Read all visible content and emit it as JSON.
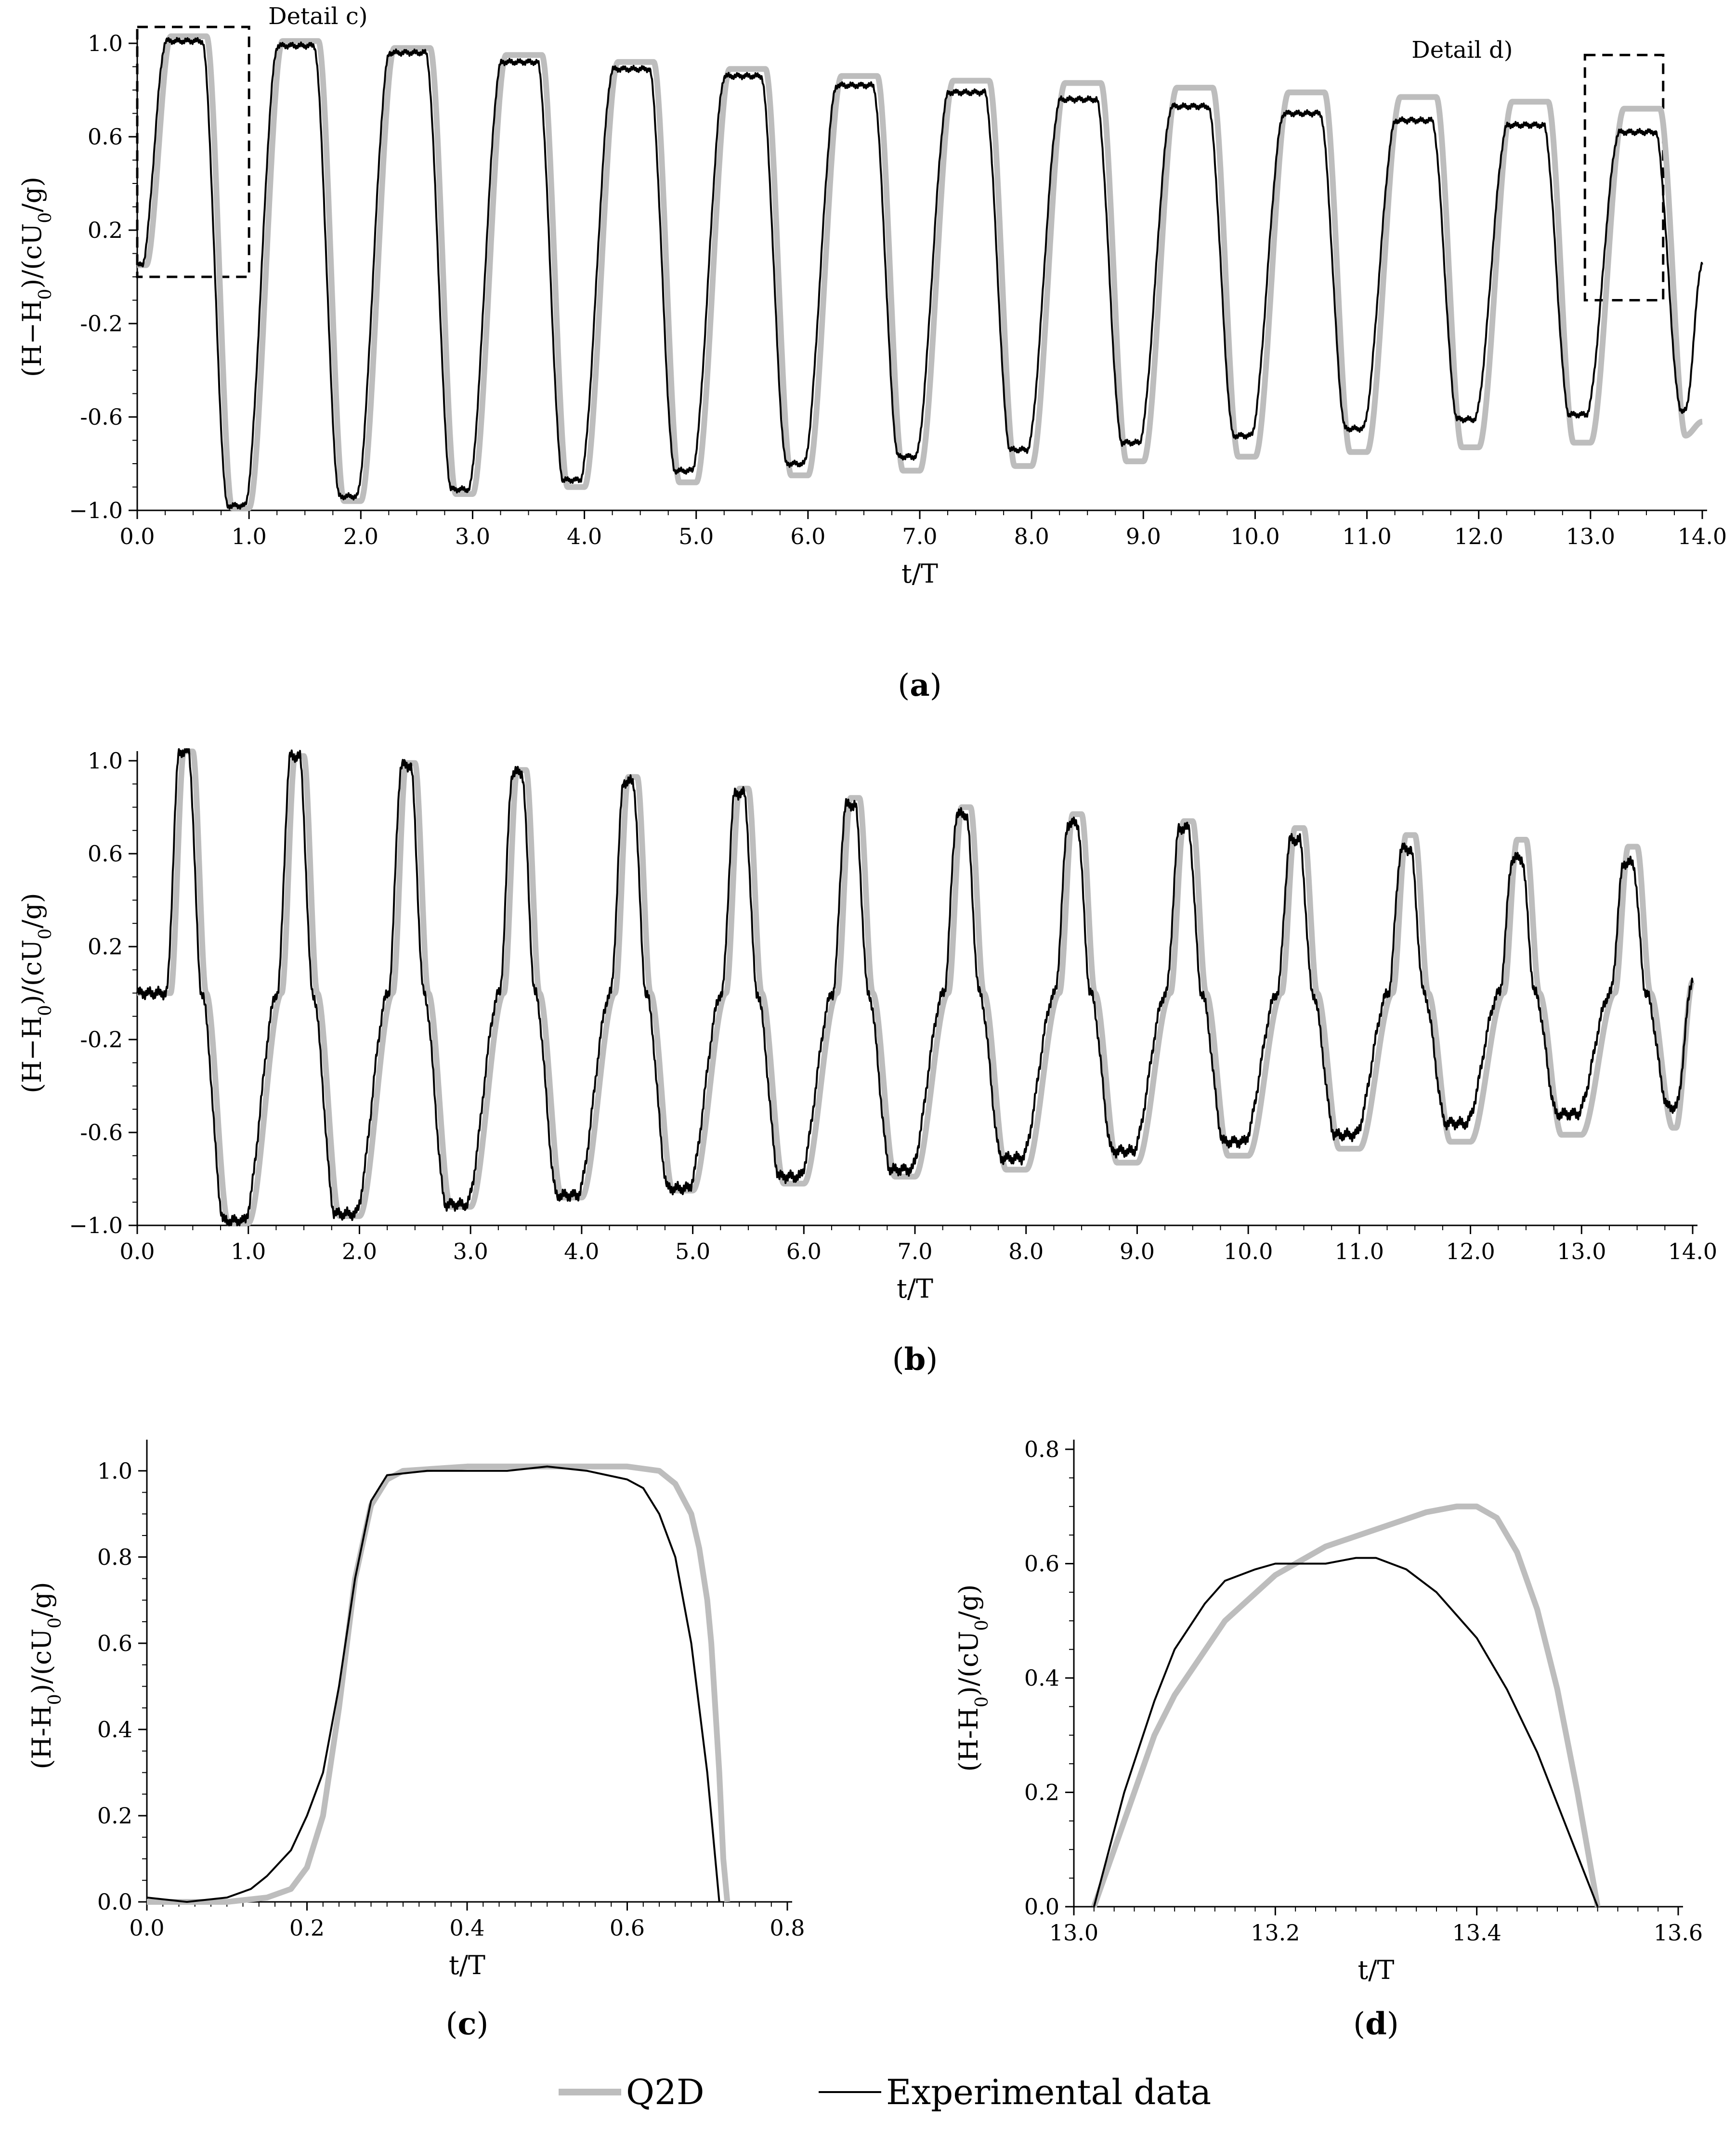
{
  "figure": {
    "legend": [
      {
        "label": "Q2D",
        "color": "#bdbdbd"
      },
      {
        "label": "Experimental data",
        "color": "#000000"
      }
    ]
  },
  "chart_data": [
    {
      "id": "a",
      "type": "line",
      "caption": "(a)",
      "xlabel": "t/T",
      "ylabel": "(H−H0)/(cU0/g)",
      "xlim": [
        0,
        14
      ],
      "ylim": [
        -1,
        1
      ],
      "xticks": [
        "0.0",
        "1.0",
        "2.0",
        "3.0",
        "4.0",
        "5.0",
        "6.0",
        "7.0",
        "8.0",
        "9.0",
        "10.0",
        "11.0",
        "12.0",
        "13.0",
        "14.0"
      ],
      "yticks": [
        "−1.0",
        "-0.6",
        "-0.2",
        "0.2",
        "0.6",
        "1.0"
      ],
      "annotations": [
        {
          "text": "Detail c)",
          "box": {
            "x0": 0.0,
            "x1": 1.0,
            "y0": 0.0,
            "y1": 1.07
          }
        },
        {
          "text": "Detail d)",
          "box": {
            "x0": 12.95,
            "x1": 13.65,
            "y0": -0.1,
            "y1": 0.95
          }
        }
      ],
      "waveform": {
        "style": "square",
        "start": 0.05,
        "phase": 0.0,
        "riseEnd": 0.3,
        "fallStart": 0.62,
        "fallEnd": 0.85
      },
      "series": [
        {
          "name": "Q2D",
          "color": "#bdbdbd",
          "peaks": [
            1.03,
            1.01,
            0.98,
            0.95,
            0.92,
            0.89,
            0.86,
            0.84,
            0.83,
            0.81,
            0.79,
            0.77,
            0.75,
            0.72
          ],
          "troughs": [
            -0.99,
            -0.96,
            -0.93,
            -0.9,
            -0.88,
            -0.85,
            -0.83,
            -0.81,
            -0.79,
            -0.77,
            -0.75,
            -0.73,
            -0.71,
            -0.68
          ],
          "endValue": -0.62
        },
        {
          "name": "Experimental data",
          "color": "#000000",
          "peaks": [
            1.01,
            0.99,
            0.96,
            0.92,
            0.89,
            0.86,
            0.82,
            0.79,
            0.76,
            0.73,
            0.7,
            0.67,
            0.65,
            0.62
          ],
          "troughs": [
            -0.98,
            -0.94,
            -0.91,
            -0.87,
            -0.83,
            -0.8,
            -0.77,
            -0.74,
            -0.71,
            -0.68,
            -0.65,
            -0.61,
            -0.59,
            -0.57
          ],
          "endValue": 0.06
        }
      ]
    },
    {
      "id": "b",
      "type": "line",
      "caption": "(b)",
      "xlabel": "t/T",
      "ylabel": "(H−H0)/(cU0/g)",
      "xlim": [
        0,
        14
      ],
      "ylim": [
        -1,
        1
      ],
      "xticks": [
        "0.0",
        "1.0",
        "2.0",
        "3.0",
        "4.0",
        "5.0",
        "6.0",
        "7.0",
        "8.0",
        "9.0",
        "10.0",
        "11.0",
        "12.0",
        "13.0",
        "14.0"
      ],
      "yticks": [
        "−1.0",
        "-0.6",
        "-0.2",
        "0.2",
        "0.6",
        "1.0"
      ],
      "waveform": {
        "style": "peaked",
        "start": 0.0
      },
      "series": [
        {
          "name": "Q2D",
          "color": "#bdbdbd",
          "peaks": [
            1.04,
            1.02,
            0.99,
            0.96,
            0.93,
            0.88,
            0.84,
            0.8,
            0.77,
            0.74,
            0.71,
            0.68,
            0.66,
            0.63
          ],
          "troughs": [
            -0.99,
            -0.96,
            -0.92,
            -0.88,
            -0.85,
            -0.82,
            -0.79,
            -0.76,
            -0.73,
            -0.7,
            -0.67,
            -0.64,
            -0.61,
            -0.58
          ],
          "endValue": 0.05
        },
        {
          "name": "Experimental data",
          "color": "#000000",
          "peaks": [
            1.04,
            1.02,
            0.98,
            0.95,
            0.91,
            0.86,
            0.81,
            0.77,
            0.73,
            0.71,
            0.66,
            0.62,
            0.58,
            0.56
          ],
          "troughs": [
            -0.98,
            -0.95,
            -0.91,
            -0.87,
            -0.84,
            -0.79,
            -0.76,
            -0.71,
            -0.68,
            -0.64,
            -0.61,
            -0.56,
            -0.52,
            -0.49
          ],
          "endValue": 0.06
        }
      ]
    },
    {
      "id": "c",
      "type": "line",
      "caption": "(c)",
      "xlabel": "t/T",
      "ylabel": "(H-H0)/(cU0/g)",
      "xlim": [
        0,
        0.8
      ],
      "ylim": [
        0,
        1.05
      ],
      "xticks": [
        "0.0",
        "0.2",
        "0.4",
        "0.6",
        "0.8"
      ],
      "yticks": [
        "0.0",
        "0.2",
        "0.4",
        "0.6",
        "0.8",
        "1.0"
      ],
      "series": [
        {
          "name": "Q2D",
          "color": "#bdbdbd",
          "x": [
            0.0,
            0.1,
            0.15,
            0.18,
            0.2,
            0.22,
            0.24,
            0.26,
            0.28,
            0.3,
            0.32,
            0.4,
            0.5,
            0.6,
            0.64,
            0.66,
            0.68,
            0.69,
            0.7,
            0.705,
            0.71,
            0.715,
            0.72,
            0.725
          ],
          "y": [
            0.0,
            0.0,
            0.01,
            0.03,
            0.08,
            0.2,
            0.45,
            0.75,
            0.92,
            0.98,
            1.0,
            1.01,
            1.01,
            1.01,
            1.0,
            0.97,
            0.9,
            0.82,
            0.7,
            0.6,
            0.45,
            0.3,
            0.1,
            0.0
          ]
        },
        {
          "name": "Experimental data",
          "color": "#000000",
          "x": [
            0.0,
            0.05,
            0.1,
            0.13,
            0.15,
            0.18,
            0.2,
            0.22,
            0.24,
            0.26,
            0.28,
            0.3,
            0.35,
            0.4,
            0.45,
            0.5,
            0.55,
            0.6,
            0.62,
            0.64,
            0.66,
            0.68,
            0.69,
            0.7,
            0.705,
            0.71,
            0.715
          ],
          "y": [
            0.01,
            0.0,
            0.01,
            0.03,
            0.06,
            0.12,
            0.2,
            0.3,
            0.5,
            0.75,
            0.93,
            0.99,
            1.0,
            1.0,
            1.0,
            1.01,
            1.0,
            0.98,
            0.96,
            0.9,
            0.8,
            0.6,
            0.45,
            0.3,
            0.2,
            0.1,
            0.0
          ]
        }
      ]
    },
    {
      "id": "d",
      "type": "line",
      "caption": "(d)",
      "xlabel": "t/T",
      "ylabel": "(H-H0)/(cU0/g)",
      "xlim": [
        13.0,
        13.6
      ],
      "ylim": [
        0,
        0.8
      ],
      "xticks": [
        "13.0",
        "13.2",
        "13.4",
        "13.6"
      ],
      "yticks": [
        "0.0",
        "0.2",
        "0.4",
        "0.6",
        "0.8"
      ],
      "series": [
        {
          "name": "Q2D",
          "color": "#bdbdbd",
          "x": [
            13.02,
            13.05,
            13.08,
            13.1,
            13.15,
            13.2,
            13.25,
            13.3,
            13.35,
            13.38,
            13.4,
            13.42,
            13.44,
            13.46,
            13.48,
            13.5,
            13.51,
            13.52
          ],
          "y": [
            0.0,
            0.15,
            0.3,
            0.37,
            0.5,
            0.58,
            0.63,
            0.66,
            0.69,
            0.7,
            0.7,
            0.68,
            0.62,
            0.52,
            0.38,
            0.2,
            0.1,
            0.0
          ]
        },
        {
          "name": "Experimental data",
          "color": "#000000",
          "x": [
            13.02,
            13.05,
            13.08,
            13.1,
            13.13,
            13.15,
            13.18,
            13.2,
            13.22,
            13.25,
            13.28,
            13.3,
            13.33,
            13.36,
            13.4,
            13.43,
            13.46,
            13.48,
            13.5,
            13.52
          ],
          "y": [
            0.0,
            0.2,
            0.36,
            0.45,
            0.53,
            0.57,
            0.59,
            0.6,
            0.6,
            0.6,
            0.61,
            0.61,
            0.59,
            0.55,
            0.47,
            0.38,
            0.27,
            0.18,
            0.09,
            0.0
          ]
        }
      ]
    }
  ]
}
